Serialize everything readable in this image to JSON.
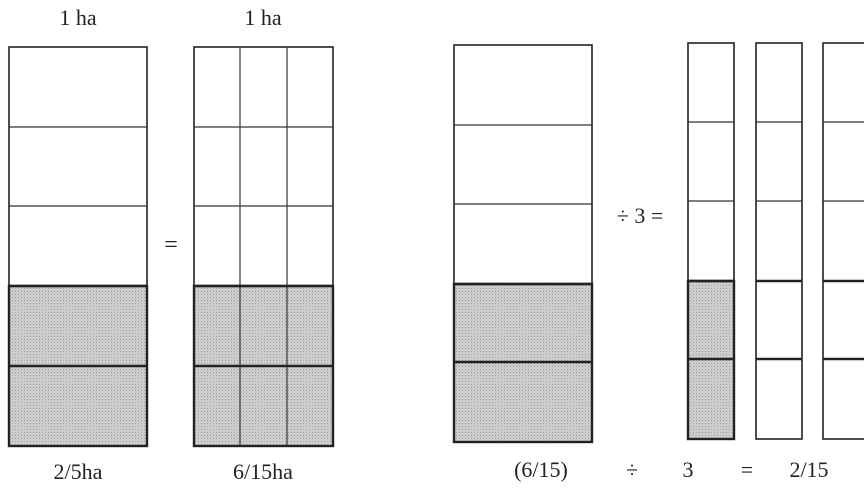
{
  "left": {
    "label_top_1": "1 ha",
    "label_top_2": "1 ha",
    "label_bottom_1": "2/5ha",
    "label_bottom_2": "6/15ha",
    "equals_sign": "="
  },
  "right": {
    "divide_text": "÷ 3 =",
    "equation": {
      "term": "(6/15)",
      "op": "÷",
      "divisor": "3",
      "eq": "=",
      "result": "2/15"
    }
  },
  "shading": {
    "rows_total": 5,
    "rows_shaded": 2,
    "columns_split": 3
  },
  "colors": {
    "shade": "#c8c8c8",
    "line": "#222222"
  }
}
